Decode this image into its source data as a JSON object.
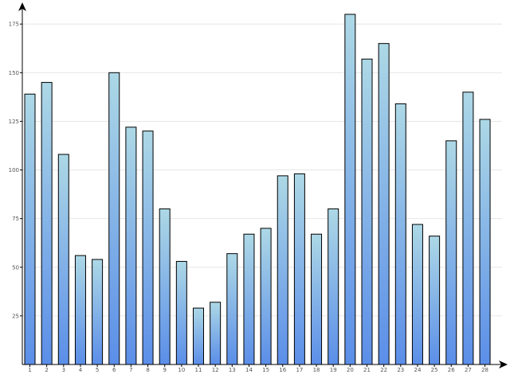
{
  "chart_data": {
    "type": "bar",
    "title": "",
    "xlabel": "",
    "ylabel": "",
    "categories": [
      "1",
      "2",
      "3",
      "4",
      "5",
      "6",
      "7",
      "8",
      "9",
      "10",
      "11",
      "12",
      "13",
      "14",
      "15",
      "16",
      "17",
      "18",
      "19",
      "20",
      "21",
      "22",
      "23",
      "24",
      "25",
      "26",
      "27",
      "28"
    ],
    "values": [
      139,
      145,
      108,
      56,
      54,
      150,
      122,
      120,
      80,
      53,
      29,
      32,
      57,
      67,
      70,
      97,
      98,
      67,
      80,
      180,
      157,
      165,
      134,
      72,
      66,
      115,
      140,
      126
    ],
    "ylim": [
      0,
      180
    ],
    "yticks": [
      "25",
      "50",
      "75",
      "100",
      "125",
      "150",
      "175"
    ],
    "grid": "horizontal",
    "legend": "none",
    "colors": {
      "bar_top": "#add8e6",
      "bar_bottom": "#5b8ee8",
      "bar_outline": "#000000",
      "grid": "#e6e6e6",
      "axis": "#000000"
    }
  }
}
